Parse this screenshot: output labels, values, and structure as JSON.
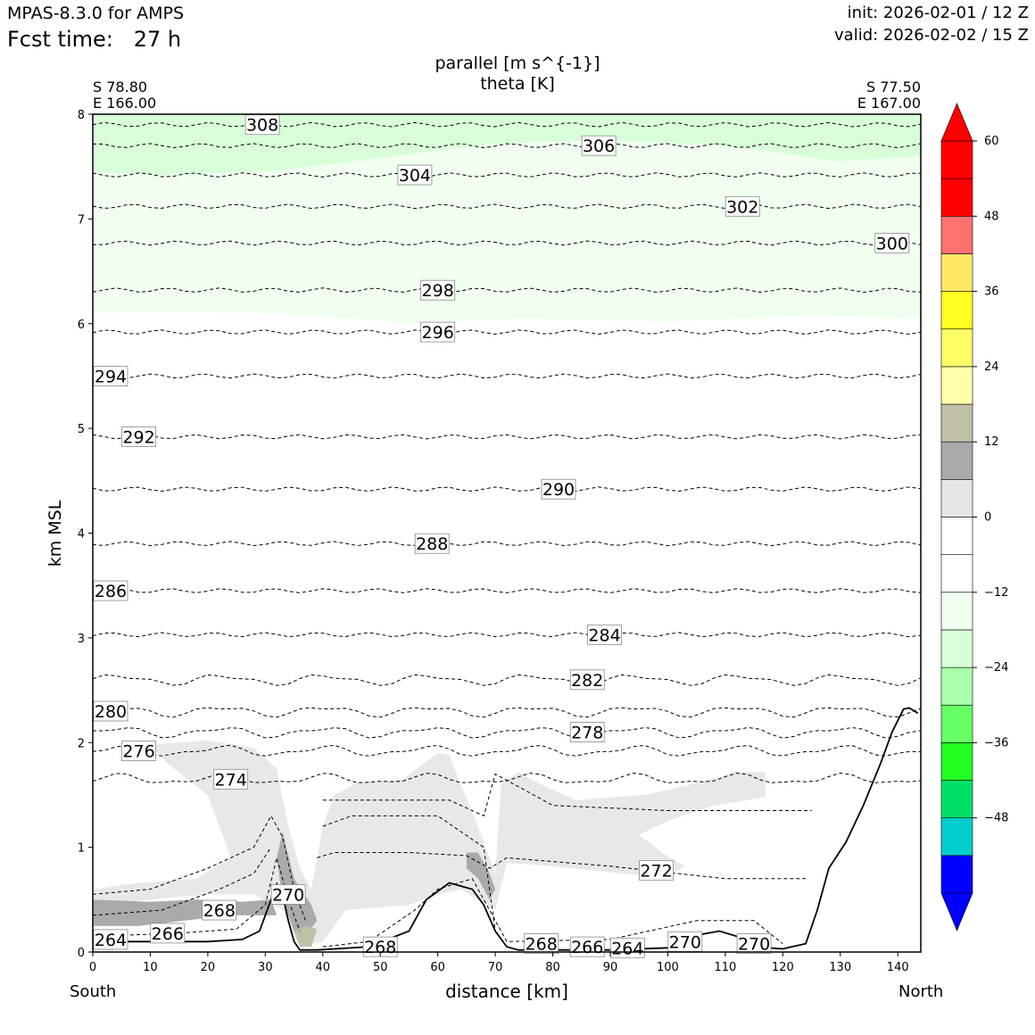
{
  "header": {
    "model": "MPAS-8.3.0 for AMPS",
    "fcst_label": "Fcst time:",
    "fcst_value": "27 h",
    "init": "init: 2026-02-01 / 12 Z",
    "valid": "valid: 2026-02-02 / 15 Z"
  },
  "chart_data": {
    "type": "cross-section",
    "title_lines": [
      "parallel [m s^{-1}]",
      "theta [K]"
    ],
    "xlabel": "distance [km]",
    "ylabel": "km MSL",
    "xlim": [
      0,
      144
    ],
    "ylim": [
      0,
      8
    ],
    "xticks": [
      0,
      10,
      20,
      30,
      40,
      50,
      60,
      70,
      80,
      90,
      100,
      110,
      120,
      130,
      140
    ],
    "yticks": [
      0,
      1,
      2,
      3,
      4,
      5,
      6,
      7,
      8
    ],
    "endpoints": {
      "left": {
        "lat": "S 78.80",
        "lon": "E 166.00",
        "side": "South"
      },
      "right": {
        "lat": "S 77.50",
        "lon": "E 167.00",
        "side": "North"
      }
    },
    "colorbar": {
      "levels": [
        -60,
        -54,
        -48,
        -42,
        -36,
        -30,
        -24,
        -18,
        -12,
        -6,
        0,
        6,
        12,
        18,
        24,
        30,
        36,
        42,
        48,
        54,
        60
      ],
      "tick_labels": [
        "−48",
        "−36",
        "−24",
        "−12",
        "0",
        "12",
        "24",
        "36",
        "48",
        "60"
      ],
      "tick_values": [
        -48,
        -36,
        -24,
        -12,
        0,
        12,
        24,
        36,
        48,
        60
      ],
      "colors": [
        "#0000ff",
        "#00cdcd",
        "#00e066",
        "#20ff20",
        "#66ff66",
        "#aaffaa",
        "#d9ffd9",
        "#f0fff0",
        "#ffffff",
        "#ffffff",
        "#e6e6e6",
        "#aaaaaa",
        "#c0c0a8",
        "#ffffaa",
        "#ffff66",
        "#ffff20",
        "#ffe866",
        "#ff7070",
        "#ff0000",
        "#ff0000"
      ],
      "extend_low_color": "#0000ff",
      "extend_high_color": "#ff0000"
    },
    "terrain": [
      [
        0,
        0.1
      ],
      [
        10,
        0.1
      ],
      [
        20,
        0.1
      ],
      [
        26,
        0.12
      ],
      [
        29,
        0.2
      ],
      [
        31,
        0.5
      ],
      [
        32,
        0.65
      ],
      [
        33,
        0.55
      ],
      [
        34,
        0.3
      ],
      [
        35,
        0.1
      ],
      [
        36,
        0.02
      ],
      [
        39,
        0.02
      ],
      [
        42,
        0.03
      ],
      [
        48,
        0.05
      ],
      [
        55,
        0.2
      ],
      [
        58,
        0.5
      ],
      [
        62,
        0.66
      ],
      [
        66,
        0.6
      ],
      [
        68,
        0.45
      ],
      [
        70,
        0.2
      ],
      [
        72,
        0.05
      ],
      [
        74,
        0.02
      ],
      [
        90,
        0.02
      ],
      [
        100,
        0.04
      ],
      [
        106,
        0.17
      ],
      [
        109,
        0.2
      ],
      [
        112,
        0.15
      ],
      [
        115,
        0.05
      ],
      [
        120,
        0.03
      ],
      [
        124,
        0.08
      ],
      [
        126,
        0.4
      ],
      [
        128,
        0.8
      ],
      [
        131,
        1.05
      ],
      [
        134,
        1.4
      ],
      [
        137,
        1.8
      ],
      [
        139,
        2.1
      ],
      [
        141,
        2.32
      ],
      [
        142,
        2.33
      ],
      [
        143.5,
        2.28
      ]
    ],
    "theta_contours": [
      {
        "level": 308,
        "label": "308",
        "y": 7.9,
        "label_x": 29.5
      },
      {
        "level": 306,
        "label": "306",
        "y": 7.7,
        "label_x": 88
      },
      {
        "level": 304,
        "label": "304",
        "y": 7.42,
        "label_x": 56
      },
      {
        "level": 302,
        "label": "302",
        "y": 7.12,
        "label_x": 113
      },
      {
        "level": 300,
        "label": "300",
        "y": 6.77,
        "label_x": 139
      },
      {
        "level": 298,
        "label": "298",
        "y": 6.32,
        "label_x": 60
      },
      {
        "level": 296,
        "label": "296",
        "y": 5.92,
        "label_x": 60
      },
      {
        "level": 294,
        "label": "294",
        "y": 5.5,
        "label_x": 3
      },
      {
        "level": 292,
        "label": "292",
        "y": 4.92,
        "label_x": 8
      },
      {
        "level": 290,
        "label": "290",
        "y": 4.42,
        "label_x": 81
      },
      {
        "level": 288,
        "label": "288",
        "y": 3.9,
        "label_x": 59
      },
      {
        "level": 286,
        "label": "286",
        "y": 3.45,
        "label_x": 3
      },
      {
        "level": 284,
        "label": "284",
        "y": 3.03,
        "label_x": 89
      },
      {
        "level": 282,
        "label": "282",
        "y": 2.6,
        "label_x": 86
      },
      {
        "level": 280,
        "label": "280",
        "y": 2.3,
        "label_x": 3
      },
      {
        "level": 278,
        "label": "278",
        "y": 2.1,
        "label_x": 86
      },
      {
        "level": 276,
        "label": "276",
        "y": 1.92,
        "label_x": 8
      },
      {
        "level": 274,
        "label": "274",
        "y": 1.65,
        "label_x": 24
      },
      {
        "level": 272,
        "label": "272",
        "y": 0.78,
        "label_x": 98
      },
      {
        "level": 270,
        "label": "270",
        "y": 0.55,
        "label_x": 34
      },
      {
        "level": 270,
        "label": "270",
        "y": 0.1,
        "label_x": 103
      },
      {
        "level": 270,
        "label": "270",
        "y": 0.08,
        "label_x": 115
      },
      {
        "level": 268,
        "label": "268",
        "y": 0.4,
        "label_x": 22
      },
      {
        "level": 268,
        "label": "268",
        "y": 0.05,
        "label_x": 50
      },
      {
        "level": 268,
        "label": "268",
        "y": 0.08,
        "label_x": 78
      },
      {
        "level": 266,
        "label": "266",
        "y": 0.18,
        "label_x": 13
      },
      {
        "level": 266,
        "label": "266",
        "y": 0.05,
        "label_x": 86
      },
      {
        "level": 264,
        "label": "264",
        "y": 0.12,
        "label_x": 3
      },
      {
        "level": 264,
        "label": "264",
        "y": 0.04,
        "label_x": 93
      }
    ]
  }
}
